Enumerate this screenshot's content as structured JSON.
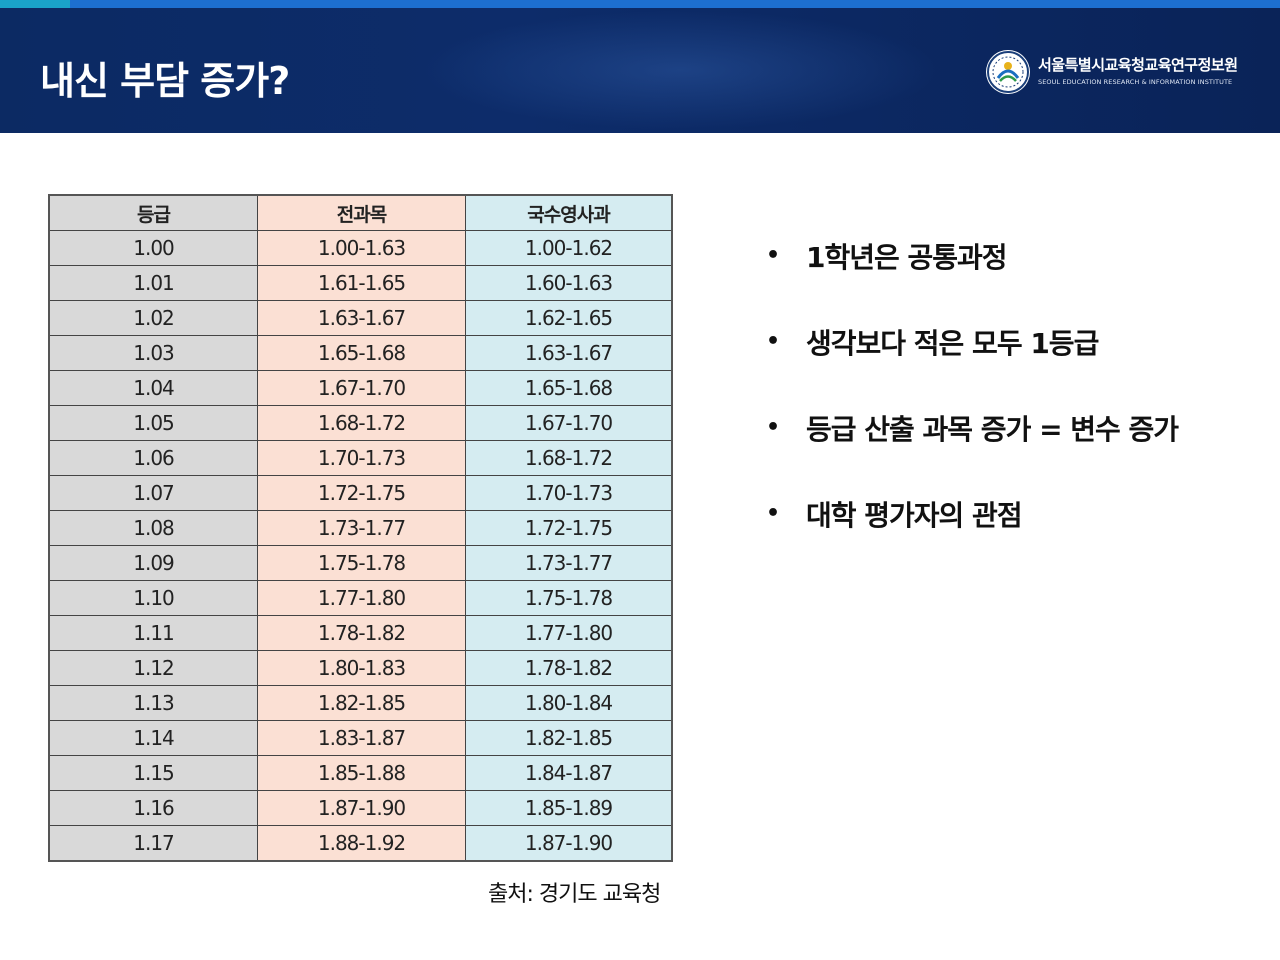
{
  "header": {
    "title": "내신 부담 증가?",
    "org_name": "서울특별시교육청교육연구정보원",
    "org_name_en": "SEOUL EDUCATION RESEARCH & INFORMATION INSTITUTE",
    "logo_icon": "seal-emblem-icon"
  },
  "table": {
    "headers": [
      "등급",
      "전과목",
      "국수영사과"
    ],
    "rows": [
      [
        "1.00",
        "1.00-1.63",
        "1.00-1.62"
      ],
      [
        "1.01",
        "1.61-1.65",
        "1.60-1.63"
      ],
      [
        "1.02",
        "1.63-1.67",
        "1.62-1.65"
      ],
      [
        "1.03",
        "1.65-1.68",
        "1.63-1.67"
      ],
      [
        "1.04",
        "1.67-1.70",
        "1.65-1.68"
      ],
      [
        "1.05",
        "1.68-1.72",
        "1.67-1.70"
      ],
      [
        "1.06",
        "1.70-1.73",
        "1.68-1.72"
      ],
      [
        "1.07",
        "1.72-1.75",
        "1.70-1.73"
      ],
      [
        "1.08",
        "1.73-1.77",
        "1.72-1.75"
      ],
      [
        "1.09",
        "1.75-1.78",
        "1.73-1.77"
      ],
      [
        "1.10",
        "1.77-1.80",
        "1.75-1.78"
      ],
      [
        "1.11",
        "1.78-1.82",
        "1.77-1.80"
      ],
      [
        "1.12",
        "1.80-1.83",
        "1.78-1.82"
      ],
      [
        "1.13",
        "1.82-1.85",
        "1.80-1.84"
      ],
      [
        "1.14",
        "1.83-1.87",
        "1.82-1.85"
      ],
      [
        "1.15",
        "1.85-1.88",
        "1.84-1.87"
      ],
      [
        "1.16",
        "1.87-1.90",
        "1.85-1.89"
      ],
      [
        "1.17",
        "1.88-1.92",
        "1.87-1.90"
      ]
    ]
  },
  "source": "출처: 경기도 교육청",
  "bullets": [
    "1학년은 공통과정",
    "생각보다 적은 모두 1등급",
    "등급 산출 과목 증가 = 변수 증가",
    "대학 평가자의 관점"
  ],
  "bullet_symbol": "•",
  "colors": {
    "header_bg": "#0c2a63",
    "grade_col": "#d9d9d9",
    "all_col": "#fbe0d4",
    "core_col": "#d5ecf1"
  }
}
